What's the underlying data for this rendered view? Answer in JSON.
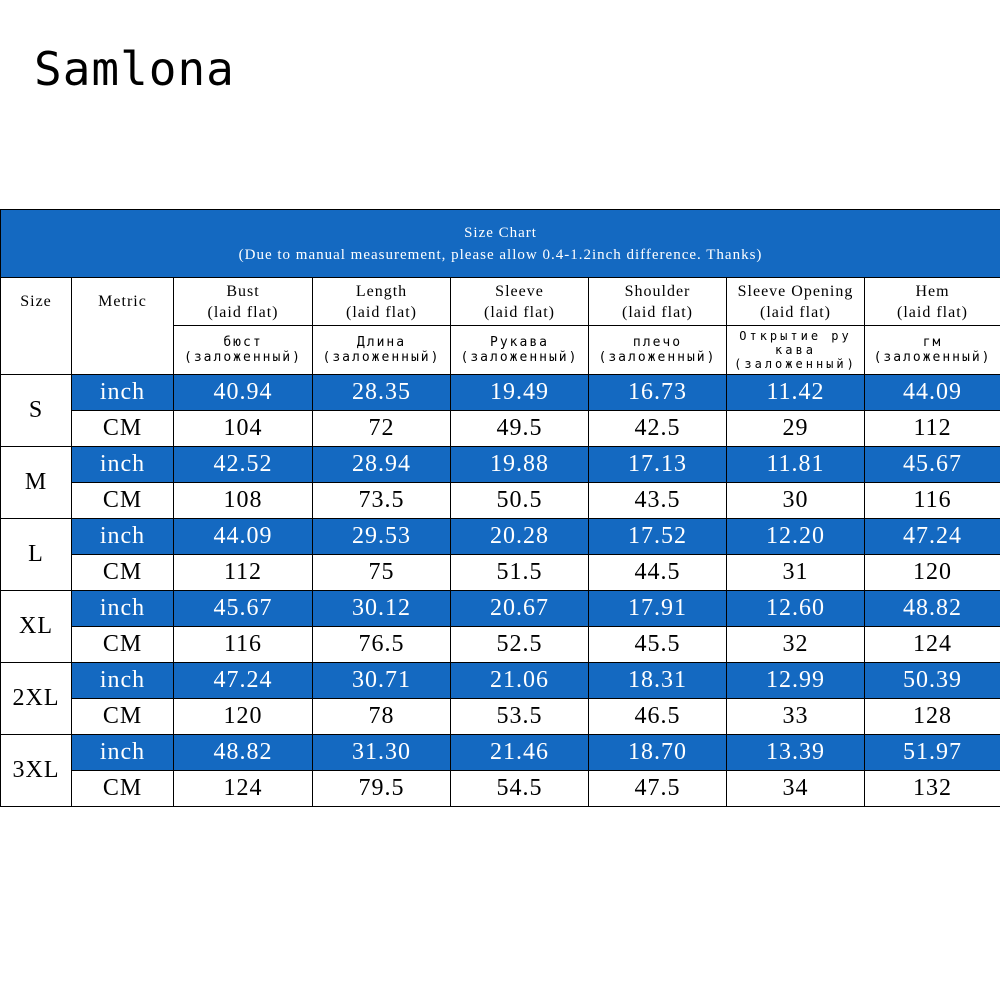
{
  "brand": "Samlona",
  "table": {
    "title": "Size Chart",
    "note": "(Due to manual measurement, please allow 0.4-1.2inch difference. Thanks)",
    "size_header": "Size",
    "metric_header": "Metric",
    "columns": [
      {
        "en": "Bust",
        "en_sub": "(laid flat)",
        "ru": "бюст",
        "ru_sub": "(заложенный)"
      },
      {
        "en": "Length",
        "en_sub": "(laid flat)",
        "ru": "Длина",
        "ru_sub": "(заложенный)"
      },
      {
        "en": "Sleeve",
        "en_sub": "(laid flat)",
        "ru": "Рукава",
        "ru_sub": "(заложенный)"
      },
      {
        "en": "Shoulder",
        "en_sub": "(laid flat)",
        "ru": "плечо",
        "ru_sub": "(заложенный)"
      },
      {
        "en": "Sleeve Opening",
        "en_sub": "(laid flat)",
        "ru": "Открытие ру",
        "ru_mid": "кава",
        "ru_sub": "(заложенный)"
      },
      {
        "en": "Hem",
        "en_sub": "(laid flat)",
        "ru": "гм",
        "ru_sub": "(заложенный)"
      }
    ],
    "inch_label": "inch",
    "cm_label": "CM",
    "sizes": [
      {
        "size": "S",
        "inch": [
          "40.94",
          "28.35",
          "19.49",
          "16.73",
          "11.42",
          "44.09"
        ],
        "cm": [
          "104",
          "72",
          "49.5",
          "42.5",
          "29",
          "112"
        ]
      },
      {
        "size": "M",
        "inch": [
          "42.52",
          "28.94",
          "19.88",
          "17.13",
          "11.81",
          "45.67"
        ],
        "cm": [
          "108",
          "73.5",
          "50.5",
          "43.5",
          "30",
          "116"
        ]
      },
      {
        "size": "L",
        "inch": [
          "44.09",
          "29.53",
          "20.28",
          "17.52",
          "12.20",
          "47.24"
        ],
        "cm": [
          "112",
          "75",
          "51.5",
          "44.5",
          "31",
          "120"
        ]
      },
      {
        "size": "XL",
        "inch": [
          "45.67",
          "30.12",
          "20.67",
          "17.91",
          "12.60",
          "48.82"
        ],
        "cm": [
          "116",
          "76.5",
          "52.5",
          "45.5",
          "32",
          "124"
        ]
      },
      {
        "size": "2XL",
        "inch": [
          "47.24",
          "30.71",
          "21.06",
          "18.31",
          "12.99",
          "50.39"
        ],
        "cm": [
          "120",
          "78",
          "53.5",
          "46.5",
          "33",
          "128"
        ]
      },
      {
        "size": "3XL",
        "inch": [
          "48.82",
          "31.30",
          "21.46",
          "18.70",
          "13.39",
          "51.97"
        ],
        "cm": [
          "124",
          "79.5",
          "54.5",
          "47.5",
          "34",
          "132"
        ]
      }
    ]
  },
  "colors": {
    "accent": "#1469c1",
    "text": "#000000",
    "background": "#ffffff"
  }
}
